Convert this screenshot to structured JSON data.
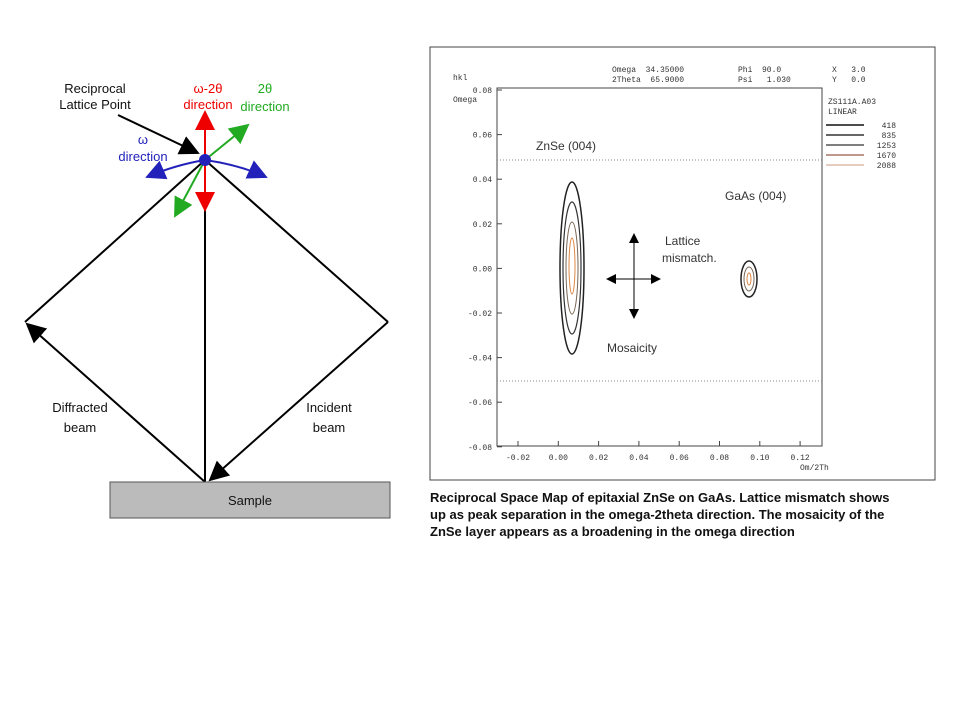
{
  "diagram": {
    "reciprocal_lattice_point": [
      "Reciprocal",
      "Lattice Point"
    ],
    "omega_2theta_direction": [
      "ω-2θ",
      "direction"
    ],
    "two_theta_direction": [
      "2θ",
      "direction"
    ],
    "omega_direction": [
      "ω",
      "direction"
    ],
    "diffracted_beam": [
      "Diffracted",
      "beam"
    ],
    "incident_beam": [
      "Incident",
      "beam"
    ],
    "sample": "Sample"
  },
  "map": {
    "header": {
      "axis_unit": "hkl",
      "y_name": "Omega",
      "omega": "Omega  34.35000",
      "two_theta": "2Theta  65.9000",
      "phi": "Phi  90.0",
      "psi": "Psi   1.030",
      "x": "X   3.0",
      "y": "Y   0.0",
      "file": "ZS111A.A03",
      "scale": "LINEAR"
    },
    "levels": [
      "418",
      "835",
      "1253",
      "1670",
      "2088"
    ],
    "yticks": [
      "0.08",
      "0.06",
      "0.04",
      "0.02",
      "0.00",
      "-0.02",
      "-0.04",
      "-0.06",
      "-0.08"
    ],
    "xticks": [
      "-0.02",
      "0.00",
      "0.02",
      "0.04",
      "0.06",
      "0.08",
      "0.10",
      "0.12"
    ],
    "x_name": "Om/2Th",
    "znse_label": "ZnSe (004)",
    "gaas_label": "GaAs (004)",
    "lattice_label": [
      "Lattice",
      "mismatch."
    ],
    "mosaicity_label": "Mosaicity"
  },
  "caption": [
    "Reciprocal Space Map of epitaxial ZnSe on GaAs. Lattice mismatch shows",
    "up as peak separation in the omega-2theta direction. The mosaicity of the",
    "ZnSe layer appears as a broadening in the omega direction"
  ]
}
